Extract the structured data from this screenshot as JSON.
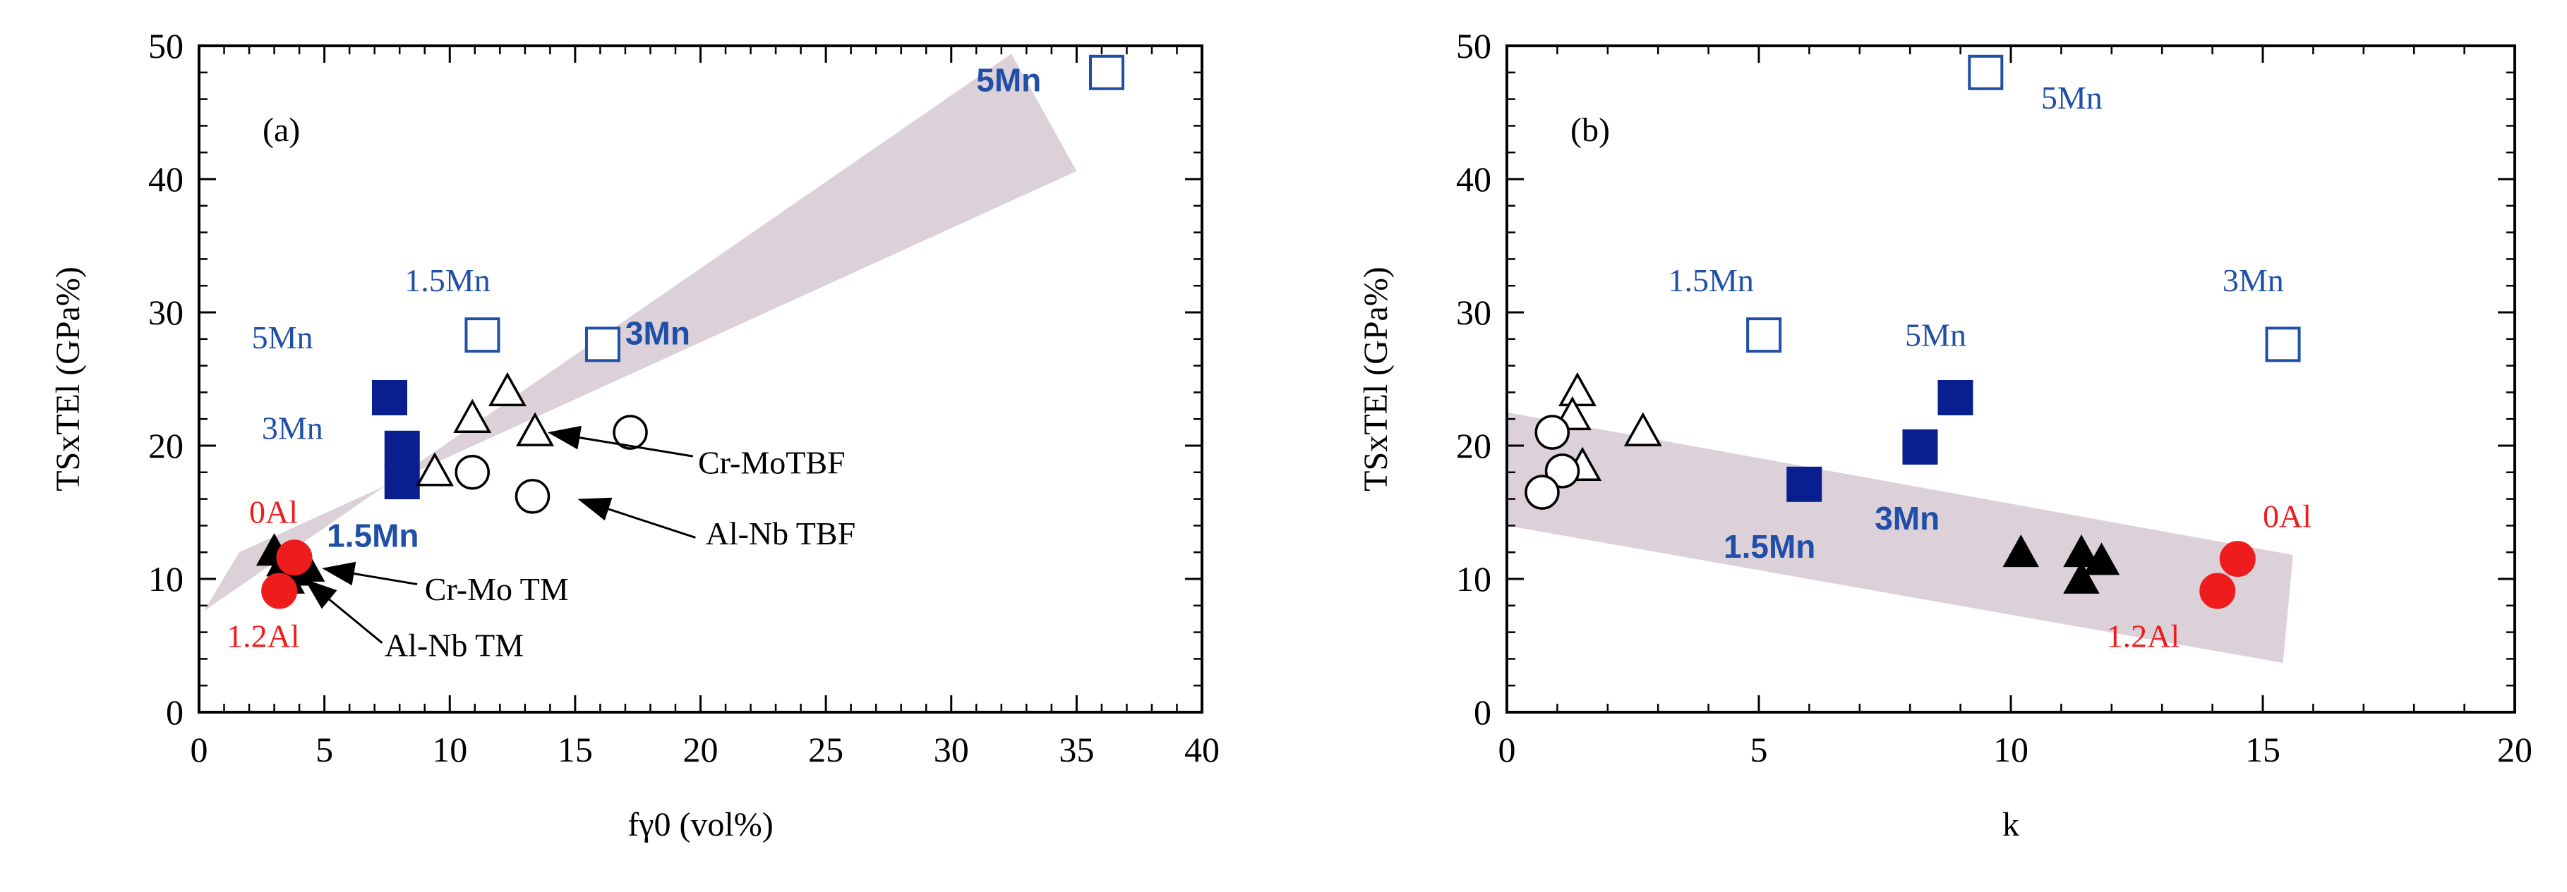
{
  "chart_data": [
    {
      "type": "scatter",
      "panel_label": "(a)",
      "xlabel": "fγ0 (vol%)",
      "ylabel": "TSxTEl (GPa%)",
      "xlim": [
        0,
        40
      ],
      "ylim": [
        0,
        50
      ],
      "xticks": [
        0,
        5,
        10,
        15,
        20,
        25,
        30,
        35,
        40
      ],
      "yticks": [
        0,
        10,
        20,
        30,
        40,
        50
      ],
      "band": [
        [
          0.2,
          7.6
        ],
        [
          1.6,
          12.0
        ],
        [
          35.0,
          40.6
        ],
        [
          32.4,
          49.4
        ]
      ],
      "series": [
        {
          "marker": "open-square",
          "color": "#1f4fa6",
          "points": [
            [
              36.2,
              48.0
            ],
            [
              11.3,
              28.3
            ],
            [
              16.1,
              27.6
            ]
          ]
        },
        {
          "marker": "filled-square",
          "color": "#0a1f8f",
          "points": [
            [
              7.6,
              23.6
            ],
            [
              8.1,
              19.8
            ],
            [
              8.1,
              17.3
            ]
          ]
        },
        {
          "marker": "open-triangle",
          "color": "#000000",
          "points": [
            [
              10.9,
              22.0
            ],
            [
              12.3,
              24.0
            ],
            [
              13.4,
              21.0
            ],
            [
              9.4,
              18.0
            ]
          ]
        },
        {
          "marker": "open-circle",
          "color": "#000000",
          "points": [
            [
              17.2,
              21.0
            ],
            [
              10.9,
              18.0
            ],
            [
              13.3,
              16.2
            ]
          ]
        },
        {
          "marker": "filled-triangle",
          "color": "#000000",
          "points": [
            [
              3.0,
              12.0
            ],
            [
              3.4,
              11.2
            ],
            [
              3.8,
              10.5
            ],
            [
              3.5,
              9.9
            ],
            [
              4.0,
              11.0
            ],
            [
              4.3,
              10.8
            ]
          ]
        },
        {
          "marker": "filled-circle",
          "color": "#ee1c1c",
          "points": [
            [
              3.8,
              11.6
            ],
            [
              3.2,
              9.1
            ]
          ]
        }
      ],
      "annotations": [
        {
          "text": "5Mn",
          "x": 31.0,
          "y": 46.6,
          "color": "#1f4fa6",
          "weight": "bold",
          "size": 40
        },
        {
          "text": "1.5Mn",
          "x": 8.2,
          "y": 31.6,
          "color": "#1f4fa6",
          "weight": "normal",
          "size": 40
        },
        {
          "text": "3Mn",
          "x": 17.0,
          "y": 27.6,
          "color": "#1f4fa6",
          "weight": "bold",
          "size": 40
        },
        {
          "text": "5Mn",
          "x": 2.1,
          "y": 27.3,
          "color": "#1f4fa6",
          "weight": "normal",
          "size": 40
        },
        {
          "text": "3Mn",
          "x": 2.5,
          "y": 20.5,
          "color": "#1f4fa6",
          "weight": "normal",
          "size": 40
        },
        {
          "text": "1.5Mn",
          "x": 5.1,
          "y": 12.4,
          "color": "#1f4fa6",
          "weight": "bold",
          "size": 40
        },
        {
          "text": "0Al",
          "x": 2.0,
          "y": 14.2,
          "color": "#ee1c1c",
          "weight": "normal",
          "size": 40
        },
        {
          "text": "1.2Al",
          "x": 1.1,
          "y": 4.9,
          "color": "#ee1c1c",
          "weight": "normal",
          "size": 40
        },
        {
          "text": "Cr-MoTBF",
          "x": 19.9,
          "y": 17.9,
          "color": "#000000",
          "weight": "normal",
          "size": 40
        },
        {
          "text": "Al-Nb TBF",
          "x": 20.2,
          "y": 12.6,
          "color": "#000000",
          "weight": "normal",
          "size": 40
        },
        {
          "text": "Cr-Mo TM",
          "x": 9.0,
          "y": 8.4,
          "color": "#000000",
          "weight": "normal",
          "size": 40
        },
        {
          "text": "Al-Nb TM",
          "x": 7.4,
          "y": 4.2,
          "color": "#000000",
          "weight": "normal",
          "size": 40
        }
      ],
      "arrows": [
        {
          "from": [
            19.7,
            19.2
          ],
          "to": [
            13.9,
            21.0
          ]
        },
        {
          "from": [
            19.8,
            13.1
          ],
          "to": [
            15.1,
            16.0
          ]
        },
        {
          "from": [
            8.7,
            9.6
          ],
          "to": [
            4.9,
            10.8
          ]
        },
        {
          "from": [
            7.3,
            5.2
          ],
          "to": [
            4.2,
            10.0
          ]
        }
      ]
    },
    {
      "type": "scatter",
      "panel_label": "(b)",
      "xlabel": "k",
      "ylabel": "TSxTEl (GPa%)",
      "xlim": [
        0,
        20
      ],
      "ylim": [
        0,
        50
      ],
      "xticks": [
        0,
        5,
        10,
        15,
        20
      ],
      "yticks": [
        0,
        10,
        20,
        30,
        40,
        50
      ],
      "band": [
        [
          0.0,
          14.0
        ],
        [
          0.0,
          22.5
        ],
        [
          15.6,
          11.8
        ],
        [
          15.4,
          3.7
        ]
      ],
      "series": [
        {
          "marker": "open-square",
          "color": "#1f4fa6",
          "points": [
            [
              9.5,
              48.0
            ],
            [
              5.1,
              28.3
            ],
            [
              15.4,
              27.6
            ]
          ]
        },
        {
          "marker": "filled-square",
          "color": "#0a1f8f",
          "points": [
            [
              8.9,
              23.6
            ],
            [
              8.2,
              19.9
            ],
            [
              5.9,
              17.1
            ]
          ]
        },
        {
          "marker": "open-triangle",
          "color": "#000000",
          "points": [
            [
              1.4,
              24.0
            ],
            [
              1.3,
              22.2
            ],
            [
              2.7,
              21.0
            ],
            [
              1.5,
              18.4
            ]
          ]
        },
        {
          "marker": "open-circle",
          "color": "#000000",
          "points": [
            [
              0.9,
              21.0
            ],
            [
              1.1,
              18.1
            ],
            [
              0.7,
              16.5
            ]
          ]
        },
        {
          "marker": "filled-triangle",
          "color": "#000000",
          "points": [
            [
              10.2,
              11.9
            ],
            [
              11.4,
              11.9
            ],
            [
              11.8,
              11.3
            ],
            [
              11.4,
              9.9
            ]
          ]
        },
        {
          "marker": "filled-circle",
          "color": "#ee1c1c",
          "points": [
            [
              14.5,
              11.5
            ],
            [
              14.1,
              9.1
            ]
          ]
        }
      ],
      "annotations": [
        {
          "text": "5Mn",
          "x": 10.6,
          "y": 45.3,
          "color": "#1f4fa6",
          "weight": "normal",
          "size": 40
        },
        {
          "text": "1.5Mn",
          "x": 3.2,
          "y": 31.6,
          "color": "#1f4fa6",
          "weight": "normal",
          "size": 40
        },
        {
          "text": "3Mn",
          "x": 14.2,
          "y": 31.6,
          "color": "#1f4fa6",
          "weight": "normal",
          "size": 40
        },
        {
          "text": "5Mn",
          "x": 7.9,
          "y": 27.5,
          "color": "#1f4fa6",
          "weight": "normal",
          "size": 40
        },
        {
          "text": "3Mn",
          "x": 7.3,
          "y": 13.7,
          "color": "#1f4fa6",
          "weight": "bold",
          "size": 40
        },
        {
          "text": "1.5Mn",
          "x": 4.3,
          "y": 11.6,
          "color": "#1f4fa6",
          "weight": "bold",
          "size": 40
        },
        {
          "text": "0Al",
          "x": 15.0,
          "y": 13.9,
          "color": "#ee1c1c",
          "weight": "normal",
          "size": 40
        },
        {
          "text": "1.2Al",
          "x": 11.9,
          "y": 4.9,
          "color": "#ee1c1c",
          "weight": "normal",
          "size": 40
        }
      ],
      "arrows": []
    }
  ]
}
